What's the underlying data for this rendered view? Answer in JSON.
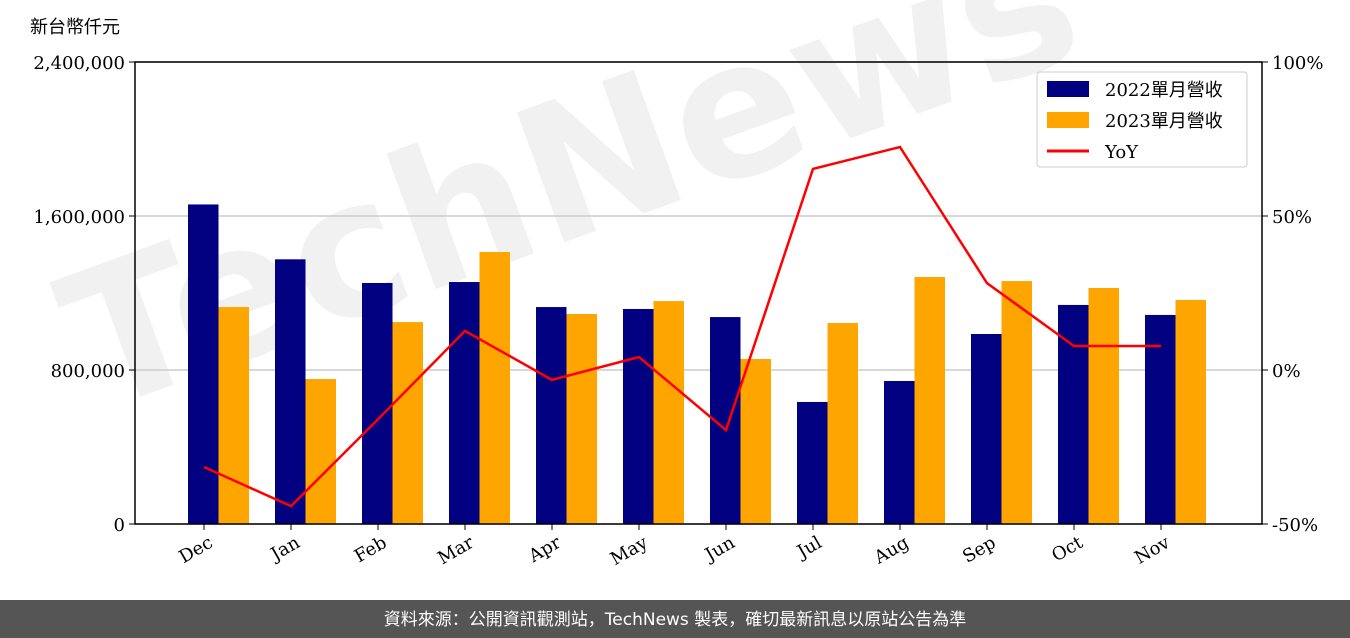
{
  "chart_data": {
    "type": "bar_line",
    "ylabel": "新台幣仟元",
    "watermark": "TechNews",
    "footer": "資料來源：公開資訊觀測站，TechNews 製表，確切最新訊息以原站公告為準",
    "categories": [
      "Dec",
      "Jan",
      "Feb",
      "Mar",
      "Apr",
      "May",
      "Jun",
      "Jul",
      "Aug",
      "Sep",
      "Oct",
      "Nov"
    ],
    "series": [
      {
        "name": "2022單月營收",
        "color": "#000080",
        "type": "bar",
        "values": [
          1660000,
          1375000,
          1252000,
          1257000,
          1127000,
          1117000,
          1075000,
          634000,
          743000,
          987000,
          1138000,
          1086000
        ]
      },
      {
        "name": "2023單月營收",
        "color": "#ffa500",
        "type": "bar",
        "values": [
          1127000,
          753000,
          1049000,
          1413000,
          1091000,
          1158000,
          857000,
          1044000,
          1283000,
          1262000,
          1226000,
          1164000
        ]
      },
      {
        "name": "YoY",
        "color": "#ff0000",
        "type": "line",
        "axis": "y2",
        "values": [
          -31.5,
          -44.2,
          -16,
          12.7,
          -3.2,
          4.2,
          -19.5,
          65.3,
          72.4,
          28.2,
          7.8,
          7.8
        ]
      }
    ],
    "ylim": [
      0,
      2400000
    ],
    "yticks": [
      0,
      {
        "value": 800000,
        "label": "800,000"
      },
      {
        "value": 1600000,
        "label": "1,600,000"
      },
      {
        "value": 2400000,
        "label": "2,400,000"
      }
    ],
    "y2lim": [
      -50,
      100
    ],
    "y2ticks": [
      {
        "value": -50,
        "label": "-50%"
      },
      {
        "value": 0,
        "label": "0%"
      },
      {
        "value": 50,
        "label": "50%"
      },
      {
        "value": 100,
        "label": "100%"
      }
    ],
    "grid": true,
    "legend": "upper right"
  }
}
